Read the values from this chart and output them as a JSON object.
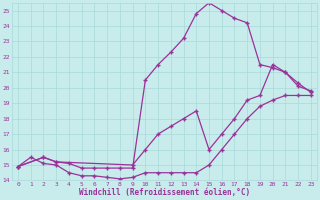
{
  "xlabel": "Windchill (Refroidissement éolien,°C)",
  "bg_color": "#c8ecec",
  "grid_color": "#a8d8d8",
  "line_color": "#993399",
  "xlim": [
    -0.5,
    23.5
  ],
  "ylim": [
    14,
    25.5
  ],
  "yticks": [
    14,
    15,
    16,
    17,
    18,
    19,
    20,
    21,
    22,
    23,
    24,
    25
  ],
  "xticks": [
    0,
    1,
    2,
    3,
    4,
    5,
    6,
    7,
    8,
    9,
    10,
    11,
    12,
    13,
    14,
    15,
    16,
    17,
    18,
    19,
    20,
    21,
    22,
    23
  ],
  "lines": [
    {
      "x": [
        0,
        2,
        3,
        4,
        5,
        6,
        7,
        8,
        9,
        10,
        11,
        12,
        13,
        14,
        15,
        16,
        17,
        18,
        19,
        20,
        21,
        22,
        23
      ],
      "y": [
        14.9,
        15.5,
        15.2,
        15.1,
        14.8,
        14.8,
        14.8,
        14.8,
        14.8,
        20.5,
        21.5,
        22.3,
        23.2,
        24.8,
        25.5,
        25.0,
        24.5,
        24.2,
        21.5,
        21.3,
        21.0,
        20.1,
        19.8
      ]
    },
    {
      "x": [
        0,
        2,
        3,
        9,
        10,
        11,
        12,
        13,
        14,
        15,
        16,
        17,
        18,
        19,
        20,
        21,
        22,
        23
      ],
      "y": [
        14.9,
        15.5,
        15.2,
        15.0,
        16.0,
        17.0,
        17.5,
        18.0,
        18.5,
        16.0,
        17.0,
        18.0,
        19.2,
        19.5,
        21.5,
        21.0,
        20.3,
        19.7
      ]
    },
    {
      "x": [
        0,
        1,
        2,
        3,
        4,
        5,
        6,
        7,
        8,
        9,
        10,
        11,
        12,
        13,
        14,
        15,
        16,
        17,
        18,
        19,
        20,
        21,
        22,
        23
      ],
      "y": [
        14.9,
        15.5,
        15.1,
        15.0,
        14.5,
        14.3,
        14.3,
        14.2,
        14.1,
        14.2,
        14.5,
        14.5,
        14.5,
        14.5,
        14.5,
        15.0,
        16.0,
        17.0,
        18.0,
        18.8,
        19.2,
        19.5,
        19.5,
        19.5
      ]
    }
  ]
}
